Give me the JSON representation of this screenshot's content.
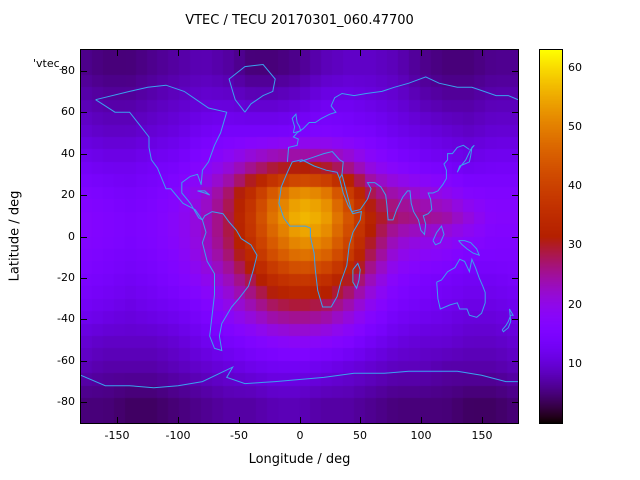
{
  "title": "VTEC / TECU 20170301_060.47700",
  "key_label": "'vtec_",
  "axes": {
    "xlabel": "Longitude / deg",
    "ylabel": "Latitude / deg",
    "x_ticks": [
      -150,
      -100,
      -50,
      0,
      50,
      100,
      150
    ],
    "y_ticks": [
      80,
      60,
      40,
      20,
      0,
      -20,
      -40,
      -60,
      -80
    ],
    "x_range": [
      -180,
      180
    ],
    "y_range": [
      -90,
      90
    ]
  },
  "colorbar": {
    "ticks": [
      10,
      20,
      30,
      40,
      50,
      60
    ],
    "range": [
      0,
      63
    ],
    "palette": "gnuplot pm3d rgbformulae 7,5,15 (black-violet-red-yellow)"
  },
  "chart_data": {
    "type": "heatmap",
    "title": "VTEC / TECU 20170301_060.47700",
    "xlabel": "Longitude / deg",
    "ylabel": "Latitude / deg",
    "unit": "TECU",
    "xlim": [
      -180,
      180
    ],
    "ylim": [
      -90,
      90
    ],
    "colorbar_range": [
      0,
      63
    ],
    "grid": false,
    "lon": [
      -180,
      -160,
      -140,
      -120,
      -100,
      -80,
      -60,
      -40,
      -20,
      0,
      20,
      40,
      60,
      80,
      100,
      120,
      140,
      160,
      180
    ],
    "lat": [
      80,
      65,
      50,
      35,
      20,
      10,
      0,
      -10,
      -20,
      -35,
      -50,
      -65,
      -80
    ],
    "values": [
      [
        6,
        5,
        5,
        6,
        7,
        8,
        7,
        5,
        5,
        6,
        8,
        9,
        9,
        8,
        6,
        5,
        5,
        6,
        6
      ],
      [
        8,
        7,
        7,
        8,
        9,
        10,
        10,
        9,
        9,
        10,
        12,
        12,
        11,
        10,
        8,
        7,
        7,
        8,
        8
      ],
      [
        10,
        9,
        9,
        10,
        11,
        13,
        14,
        14,
        14,
        15,
        16,
        15,
        14,
        12,
        11,
        10,
        9,
        10,
        10
      ],
      [
        13,
        12,
        12,
        13,
        14,
        17,
        20,
        24,
        27,
        28,
        27,
        24,
        19,
        16,
        14,
        13,
        12,
        13,
        13
      ],
      [
        16,
        15,
        14,
        15,
        17,
        21,
        27,
        36,
        47,
        54,
        52,
        40,
        28,
        24,
        22,
        20,
        17,
        16,
        16
      ],
      [
        17,
        16,
        15,
        16,
        18,
        22,
        28,
        38,
        50,
        57,
        55,
        44,
        32,
        27,
        26,
        25,
        21,
        17,
        17
      ],
      [
        17,
        16,
        15,
        16,
        18,
        22,
        28,
        37,
        47,
        54,
        52,
        42,
        30,
        23,
        21,
        20,
        18,
        16,
        16
      ],
      [
        16,
        15,
        14,
        15,
        17,
        21,
        26,
        34,
        43,
        48,
        46,
        38,
        27,
        20,
        18,
        17,
        15,
        15,
        15
      ],
      [
        15,
        14,
        13,
        14,
        16,
        19,
        23,
        29,
        36,
        39,
        37,
        31,
        23,
        17,
        15,
        14,
        13,
        13,
        14
      ],
      [
        13,
        12,
        11,
        12,
        13,
        15,
        19,
        23,
        27,
        28,
        27,
        23,
        18,
        14,
        13,
        12,
        11,
        11,
        12
      ],
      [
        10,
        9,
        9,
        9,
        10,
        12,
        14,
        16,
        18,
        19,
        18,
        16,
        13,
        11,
        10,
        10,
        9,
        9,
        10
      ],
      [
        8,
        7,
        7,
        7,
        8,
        9,
        10,
        11,
        12,
        12,
        11,
        10,
        9,
        8,
        8,
        7,
        7,
        7,
        8
      ],
      [
        5,
        5,
        4,
        4,
        5,
        6,
        7,
        7,
        8,
        8,
        7,
        7,
        6,
        5,
        5,
        5,
        4,
        4,
        5
      ]
    ]
  },
  "coastlines": {
    "color": "#3aa2ee",
    "polylines": [
      [
        [
          -168,
          66
        ],
        [
          -140,
          70
        ],
        [
          -125,
          72
        ],
        [
          -110,
          73
        ],
        [
          -95,
          70
        ],
        [
          -85,
          66
        ],
        [
          -75,
          62
        ],
        [
          -60,
          60
        ],
        [
          -65,
          50
        ],
        [
          -70,
          44
        ],
        [
          -75,
          36
        ],
        [
          -80,
          32
        ],
        [
          -81,
          25
        ],
        [
          -84,
          30
        ],
        [
          -90,
          29
        ],
        [
          -97,
          26
        ],
        [
          -97,
          21
        ],
        [
          -90,
          16
        ],
        [
          -83,
          9
        ],
        [
          -80,
          8
        ],
        [
          -86,
          13
        ],
        [
          -96,
          16
        ],
        [
          -106,
          23
        ],
        [
          -110,
          23
        ],
        [
          -117,
          33
        ],
        [
          -122,
          37
        ],
        [
          -124,
          43
        ],
        [
          -124,
          48
        ],
        [
          -132,
          54
        ],
        [
          -140,
          60
        ],
        [
          -152,
          60
        ],
        [
          -160,
          63
        ],
        [
          -168,
          66
        ]
      ],
      [
        [
          -45,
          60
        ],
        [
          -53,
          66
        ],
        [
          -55,
          70
        ],
        [
          -58,
          76
        ],
        [
          -45,
          82
        ],
        [
          -30,
          83
        ],
        [
          -20,
          76
        ],
        [
          -22,
          70
        ],
        [
          -30,
          68
        ],
        [
          -40,
          64
        ],
        [
          -45,
          60
        ]
      ],
      [
        [
          -80,
          8
        ],
        [
          -77,
          2
        ],
        [
          -80,
          -3
        ],
        [
          -76,
          -12
        ],
        [
          -70,
          -18
        ],
        [
          -70,
          -28
        ],
        [
          -72,
          -38
        ],
        [
          -74,
          -48
        ],
        [
          -70,
          -54
        ],
        [
          -64,
          -55
        ],
        [
          -66,
          -48
        ],
        [
          -64,
          -42
        ],
        [
          -60,
          -38
        ],
        [
          -56,
          -34
        ],
        [
          -50,
          -30
        ],
        [
          -42,
          -24
        ],
        [
          -38,
          -16
        ],
        [
          -35,
          -9
        ],
        [
          -40,
          -4
        ],
        [
          -48,
          -1
        ],
        [
          -52,
          3
        ],
        [
          -58,
          7
        ],
        [
          -63,
          11
        ],
        [
          -72,
          12
        ],
        [
          -78,
          10
        ],
        [
          -80,
          8
        ]
      ],
      [
        [
          -6,
          36
        ],
        [
          -10,
          31
        ],
        [
          -15,
          24
        ],
        [
          -17,
          16
        ],
        [
          -13,
          9
        ],
        [
          -8,
          5
        ],
        [
          -2,
          5
        ],
        [
          5,
          5
        ],
        [
          9,
          4
        ],
        [
          9,
          0
        ],
        [
          12,
          -8
        ],
        [
          13,
          -16
        ],
        [
          15,
          -26
        ],
        [
          19,
          -34
        ],
        [
          26,
          -34
        ],
        [
          31,
          -29
        ],
        [
          34,
          -22
        ],
        [
          39,
          -14
        ],
        [
          41,
          -4
        ],
        [
          44,
          2
        ],
        [
          50,
          8
        ],
        [
          51,
          12
        ],
        [
          44,
          11
        ],
        [
          40,
          15
        ],
        [
          36,
          21
        ],
        [
          33,
          28
        ],
        [
          31,
          31
        ],
        [
          22,
          32
        ],
        [
          12,
          34
        ],
        [
          2,
          37
        ],
        [
          -6,
          36
        ]
      ],
      [
        [
          -10,
          36
        ],
        [
          -9,
          43
        ],
        [
          -2,
          44
        ],
        [
          -1,
          47
        ],
        [
          -5,
          48
        ],
        [
          -2,
          50
        ],
        [
          3,
          52
        ],
        [
          8,
          55
        ],
        [
          13,
          55
        ],
        [
          18,
          57
        ],
        [
          25,
          59
        ],
        [
          30,
          60
        ],
        [
          26,
          63
        ],
        [
          29,
          67
        ],
        [
          35,
          69
        ],
        [
          45,
          68
        ],
        [
          55,
          69
        ],
        [
          68,
          70
        ],
        [
          78,
          72
        ],
        [
          90,
          74
        ],
        [
          104,
          77
        ],
        [
          115,
          74
        ],
        [
          130,
          72
        ],
        [
          142,
          72
        ],
        [
          152,
          70
        ],
        [
          162,
          68
        ],
        [
          172,
          68
        ],
        [
          180,
          66
        ]
      ],
      [
        [
          0,
          36
        ],
        [
          10,
          38
        ],
        [
          20,
          40
        ],
        [
          27,
          41
        ],
        [
          33,
          37
        ],
        [
          36,
          36
        ],
        [
          35,
          30
        ],
        [
          33,
          28
        ]
      ],
      [
        [
          35,
          30
        ],
        [
          39,
          21
        ],
        [
          43,
          12
        ],
        [
          50,
          13
        ],
        [
          56,
          18
        ],
        [
          59,
          23
        ],
        [
          56,
          26
        ],
        [
          62,
          26
        ],
        [
          67,
          24
        ],
        [
          71,
          20
        ],
        [
          72,
          15
        ],
        [
          73,
          8
        ],
        [
          77,
          8
        ],
        [
          80,
          13
        ],
        [
          85,
          19
        ],
        [
          89,
          22
        ],
        [
          91,
          22
        ],
        [
          92,
          16
        ],
        [
          94,
          12
        ],
        [
          98,
          8
        ],
        [
          100,
          3
        ],
        [
          103,
          1
        ],
        [
          104,
          6
        ],
        [
          102,
          10
        ],
        [
          106,
          11
        ],
        [
          109,
          13
        ],
        [
          108,
          18
        ],
        [
          106,
          21
        ],
        [
          110,
          21
        ],
        [
          114,
          22
        ],
        [
          118,
          25
        ],
        [
          121,
          28
        ],
        [
          121,
          32
        ],
        [
          119,
          35
        ],
        [
          122,
          37
        ],
        [
          122,
          40
        ],
        [
          126,
          40
        ],
        [
          130,
          43
        ],
        [
          135,
          44
        ],
        [
          140,
          42
        ]
      ],
      [
        [
          -5,
          50
        ],
        [
          -4,
          53
        ],
        [
          -6,
          57
        ],
        [
          -3,
          59
        ],
        [
          -2,
          55
        ],
        [
          0,
          53
        ],
        [
          1,
          51
        ],
        [
          -5,
          50
        ]
      ],
      [
        [
          130,
          31
        ],
        [
          132,
          34
        ],
        [
          136,
          35
        ],
        [
          140,
          36
        ],
        [
          141,
          39
        ],
        [
          142,
          43
        ],
        [
          144,
          44
        ],
        [
          141,
          42
        ],
        [
          137,
          37
        ],
        [
          133,
          34
        ],
        [
          130,
          31
        ]
      ],
      [
        [
          113,
          -22
        ],
        [
          114,
          -30
        ],
        [
          116,
          -35
        ],
        [
          124,
          -33
        ],
        [
          130,
          -32
        ],
        [
          132,
          -35
        ],
        [
          138,
          -35
        ],
        [
          140,
          -38
        ],
        [
          146,
          -39
        ],
        [
          150,
          -37
        ],
        [
          153,
          -32
        ],
        [
          153,
          -27
        ],
        [
          151,
          -24
        ],
        [
          148,
          -20
        ],
        [
          145,
          -15
        ],
        [
          142,
          -11
        ],
        [
          140,
          -17
        ],
        [
          136,
          -12
        ],
        [
          132,
          -11
        ],
        [
          128,
          -15
        ],
        [
          122,
          -17
        ],
        [
          117,
          -21
        ],
        [
          113,
          -22
        ]
      ],
      [
        [
          167,
          -45
        ],
        [
          170,
          -43
        ],
        [
          172,
          -41
        ],
        [
          174,
          -38
        ],
        [
          176,
          -38
        ],
        [
          173,
          -35
        ],
        [
          174,
          -41
        ],
        [
          172,
          -44
        ],
        [
          168,
          -46
        ],
        [
          167,
          -45
        ]
      ],
      [
        [
          44,
          -16
        ],
        [
          48,
          -13
        ],
        [
          50,
          -16
        ],
        [
          49,
          -21
        ],
        [
          47,
          -25
        ],
        [
          44,
          -22
        ],
        [
          44,
          -16
        ]
      ],
      [
        [
          110,
          -2
        ],
        [
          113,
          2
        ],
        [
          117,
          5
        ],
        [
          119,
          1
        ],
        [
          116,
          -3
        ],
        [
          112,
          -4
        ],
        [
          110,
          -2
        ]
      ],
      [
        [
          131,
          -2
        ],
        [
          136,
          -2
        ],
        [
          141,
          -3
        ],
        [
          146,
          -6
        ],
        [
          148,
          -9
        ],
        [
          143,
          -8
        ],
        [
          138,
          -6
        ],
        [
          134,
          -4
        ],
        [
          131,
          -2
        ]
      ],
      [
        [
          -84,
          22
        ],
        [
          -78,
          21
        ],
        [
          -74,
          20
        ],
        [
          -78,
          22
        ],
        [
          -84,
          22
        ]
      ],
      [
        [
          -180,
          -67
        ],
        [
          -160,
          -72
        ],
        [
          -140,
          -72
        ],
        [
          -120,
          -73
        ],
        [
          -100,
          -72
        ],
        [
          -80,
          -70
        ],
        [
          -62,
          -65
        ],
        [
          -55,
          -63
        ],
        [
          -60,
          -68
        ],
        [
          -45,
          -71
        ],
        [
          -20,
          -70
        ],
        [
          0,
          -69
        ],
        [
          20,
          -68
        ],
        [
          45,
          -66
        ],
        [
          70,
          -66
        ],
        [
          90,
          -65
        ],
        [
          110,
          -65
        ],
        [
          130,
          -65
        ],
        [
          150,
          -67
        ],
        [
          170,
          -70
        ],
        [
          180,
          -70
        ]
      ]
    ]
  }
}
